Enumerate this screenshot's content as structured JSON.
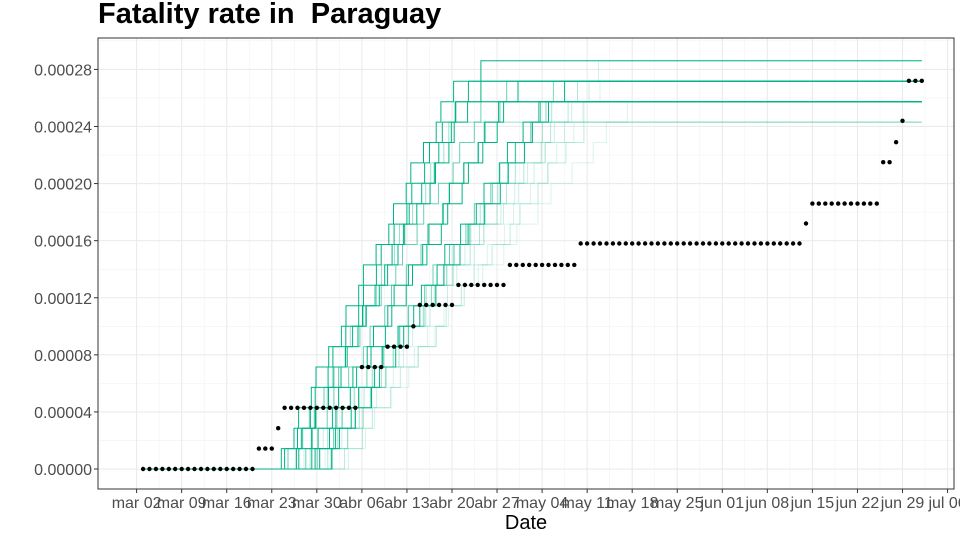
{
  "chart_data": {
    "type": "scatter",
    "title": "Fatality rate in  Paraguay",
    "xlabel": "Date",
    "ylabel": "",
    "x_range": [
      "2020-02-25",
      "2020-07-07"
    ],
    "ylim": [
      -1.4e-05,
      0.000302
    ],
    "x_ticks": [
      {
        "date": "2020-03-02",
        "label": "mar 02"
      },
      {
        "date": "2020-03-09",
        "label": "mar 09"
      },
      {
        "date": "2020-03-16",
        "label": "mar 16"
      },
      {
        "date": "2020-03-23",
        "label": "mar 23"
      },
      {
        "date": "2020-03-30",
        "label": "mar 30"
      },
      {
        "date": "2020-04-06",
        "label": "abr 06"
      },
      {
        "date": "2020-04-13",
        "label": "abr 13"
      },
      {
        "date": "2020-04-20",
        "label": "abr 20"
      },
      {
        "date": "2020-04-27",
        "label": "abr 27"
      },
      {
        "date": "2020-05-04",
        "label": "may 04"
      },
      {
        "date": "2020-05-11",
        "label": "may 11"
      },
      {
        "date": "2020-05-18",
        "label": "may 18"
      },
      {
        "date": "2020-05-25",
        "label": "may 25"
      },
      {
        "date": "2020-06-01",
        "label": "jun 01"
      },
      {
        "date": "2020-06-08",
        "label": "jun 08"
      },
      {
        "date": "2020-06-15",
        "label": "jun 15"
      },
      {
        "date": "2020-06-22",
        "label": "jun 22"
      },
      {
        "date": "2020-06-29",
        "label": "jun 29"
      },
      {
        "date": "2020-07-06",
        "label": "jul 06"
      }
    ],
    "y_ticks": [
      {
        "value": 0,
        "label": "0.00000"
      },
      {
        "value": 4e-05,
        "label": "0.00004"
      },
      {
        "value": 8e-05,
        "label": "0.00008"
      },
      {
        "value": 0.00012,
        "label": "0.00012"
      },
      {
        "value": 0.00016,
        "label": "0.00016"
      },
      {
        "value": 0.0002,
        "label": "0.00020"
      },
      {
        "value": 0.00024,
        "label": "0.00024"
      },
      {
        "value": 0.00028,
        "label": "0.00028"
      }
    ],
    "grid": true,
    "legend": "none",
    "point_color": "#000000",
    "line_color": "#00b386",
    "observed": {
      "x": [
        "2020-03-03",
        "2020-03-04",
        "2020-03-05",
        "2020-03-06",
        "2020-03-07",
        "2020-03-08",
        "2020-03-09",
        "2020-03-10",
        "2020-03-11",
        "2020-03-12",
        "2020-03-13",
        "2020-03-14",
        "2020-03-15",
        "2020-03-16",
        "2020-03-17",
        "2020-03-18",
        "2020-03-19",
        "2020-03-20",
        "2020-03-21",
        "2020-03-22",
        "2020-03-23",
        "2020-03-24",
        "2020-03-25",
        "2020-03-26",
        "2020-03-27",
        "2020-03-28",
        "2020-03-29",
        "2020-03-30",
        "2020-03-31",
        "2020-04-01",
        "2020-04-02",
        "2020-04-03",
        "2020-04-04",
        "2020-04-05",
        "2020-04-06",
        "2020-04-07",
        "2020-04-08",
        "2020-04-09",
        "2020-04-10",
        "2020-04-11",
        "2020-04-12",
        "2020-04-13",
        "2020-04-14",
        "2020-04-15",
        "2020-04-16",
        "2020-04-17",
        "2020-04-18",
        "2020-04-19",
        "2020-04-20",
        "2020-04-21",
        "2020-04-22",
        "2020-04-23",
        "2020-04-24",
        "2020-04-25",
        "2020-04-26",
        "2020-04-27",
        "2020-04-28",
        "2020-04-29",
        "2020-04-30",
        "2020-05-01",
        "2020-05-02",
        "2020-05-03",
        "2020-05-04",
        "2020-05-05",
        "2020-05-06",
        "2020-05-07",
        "2020-05-08",
        "2020-05-09",
        "2020-05-10",
        "2020-05-11",
        "2020-05-12",
        "2020-05-13",
        "2020-05-14",
        "2020-05-15",
        "2020-05-16",
        "2020-05-17",
        "2020-05-18",
        "2020-05-19",
        "2020-05-20",
        "2020-05-21",
        "2020-05-22",
        "2020-05-23",
        "2020-05-24",
        "2020-05-25",
        "2020-05-26",
        "2020-05-27",
        "2020-05-28",
        "2020-05-29",
        "2020-05-30",
        "2020-05-31",
        "2020-06-01",
        "2020-06-02",
        "2020-06-03",
        "2020-06-04",
        "2020-06-05",
        "2020-06-06",
        "2020-06-07",
        "2020-06-08",
        "2020-06-09",
        "2020-06-10",
        "2020-06-11",
        "2020-06-12",
        "2020-06-13",
        "2020-06-14",
        "2020-06-15",
        "2020-06-16",
        "2020-06-17",
        "2020-06-18",
        "2020-06-19",
        "2020-06-20",
        "2020-06-21",
        "2020-06-22",
        "2020-06-23",
        "2020-06-24",
        "2020-06-25",
        "2020-06-26",
        "2020-06-27",
        "2020-06-28",
        "2020-06-29",
        "2020-06-30",
        "2020-07-01",
        "2020-07-02"
      ],
      "y": [
        0,
        0,
        0,
        0,
        0,
        0,
        0,
        0,
        0,
        0,
        0,
        0,
        0,
        0,
        0,
        0,
        0,
        0,
        1.43e-05,
        1.43e-05,
        1.43e-05,
        2.86e-05,
        4.29e-05,
        4.29e-05,
        4.29e-05,
        4.29e-05,
        4.29e-05,
        4.29e-05,
        4.29e-05,
        4.29e-05,
        4.29e-05,
        4.29e-05,
        4.29e-05,
        4.29e-05,
        7.14e-05,
        7.14e-05,
        7.14e-05,
        7.14e-05,
        8.57e-05,
        8.57e-05,
        8.57e-05,
        8.57e-05,
        0.0001,
        0.000115,
        0.000115,
        0.000115,
        0.000115,
        0.000115,
        0.000115,
        0.000129,
        0.000129,
        0.000129,
        0.000129,
        0.000129,
        0.000129,
        0.000129,
        0.000129,
        0.000143,
        0.000143,
        0.000143,
        0.000143,
        0.000143,
        0.000143,
        0.000143,
        0.000143,
        0.000143,
        0.000143,
        0.000143,
        0.000158,
        0.000158,
        0.000158,
        0.000158,
        0.000158,
        0.000158,
        0.000158,
        0.000158,
        0.000158,
        0.000158,
        0.000158,
        0.000158,
        0.000158,
        0.000158,
        0.000158,
        0.000158,
        0.000158,
        0.000158,
        0.000158,
        0.000158,
        0.000158,
        0.000158,
        0.000158,
        0.000158,
        0.000158,
        0.000158,
        0.000158,
        0.000158,
        0.000158,
        0.000158,
        0.000158,
        0.000158,
        0.000158,
        0.000158,
        0.000158,
        0.000172,
        0.000186,
        0.000186,
        0.000186,
        0.000186,
        0.000186,
        0.000186,
        0.000186,
        0.000186,
        0.000186,
        0.000186,
        0.000186,
        0.000215,
        0.000215,
        0.000229,
        0.000244,
        0.000272,
        0.000272,
        0.000272
      ]
    },
    "simulations": {
      "note_color": "#00b386",
      "series": [
        {
          "start": "2020-03-23",
          "rise_days": 28,
          "plateau": 0.000272,
          "opacity": 1
        },
        {
          "start": "2020-03-24",
          "rise_days": 27,
          "plateau": 0.000258,
          "opacity": 1
        },
        {
          "start": "2020-03-25",
          "rise_days": 30,
          "plateau": 0.000272,
          "opacity": 1
        },
        {
          "start": "2020-03-26",
          "rise_days": 29,
          "plateau": 0.000286,
          "opacity": 1
        },
        {
          "start": "2020-03-27",
          "rise_days": 31,
          "plateau": 0.000258,
          "opacity": 1
        },
        {
          "start": "2020-03-28",
          "rise_days": 33,
          "plateau": 0.000272,
          "opacity": 1
        },
        {
          "start": "2020-03-29",
          "rise_days": 35,
          "plateau": 0.000258,
          "opacity": 1
        },
        {
          "start": "2020-03-30",
          "rise_days": 38,
          "plateau": 0.000272,
          "opacity": 1
        },
        {
          "start": "2020-03-24",
          "rise_days": 32,
          "plateau": 0.000258,
          "opacity": 0.6
        },
        {
          "start": "2020-03-26",
          "rise_days": 34,
          "plateau": 0.000272,
          "opacity": 0.6
        },
        {
          "start": "2020-03-28",
          "rise_days": 37,
          "plateau": 0.000258,
          "opacity": 0.6
        },
        {
          "start": "2020-03-31",
          "rise_days": 36,
          "plateau": 0.000272,
          "opacity": 0.5
        },
        {
          "start": "2020-03-25",
          "rise_days": 26,
          "plateau": 0.000244,
          "opacity": 0.4
        },
        {
          "start": "2020-03-27",
          "rise_days": 40,
          "plateau": 0.000258,
          "opacity": 0.35
        },
        {
          "start": "2020-03-29",
          "rise_days": 42,
          "plateau": 0.000272,
          "opacity": 0.3
        },
        {
          "start": "2020-04-01",
          "rise_days": 39,
          "plateau": 0.000244,
          "opacity": 0.25
        },
        {
          "start": "2020-03-26",
          "rise_days": 45,
          "plateau": 0.000258,
          "opacity": 0.2
        },
        {
          "start": "2020-03-30",
          "rise_days": 44,
          "plateau": 0.000286,
          "opacity": 0.2
        },
        {
          "start": "2020-04-02",
          "rise_days": 41,
          "plateau": 0.000272,
          "opacity": 0.15
        },
        {
          "start": "2020-03-28",
          "rise_days": 50,
          "plateau": 0.000258,
          "opacity": 0.15
        }
      ]
    }
  }
}
